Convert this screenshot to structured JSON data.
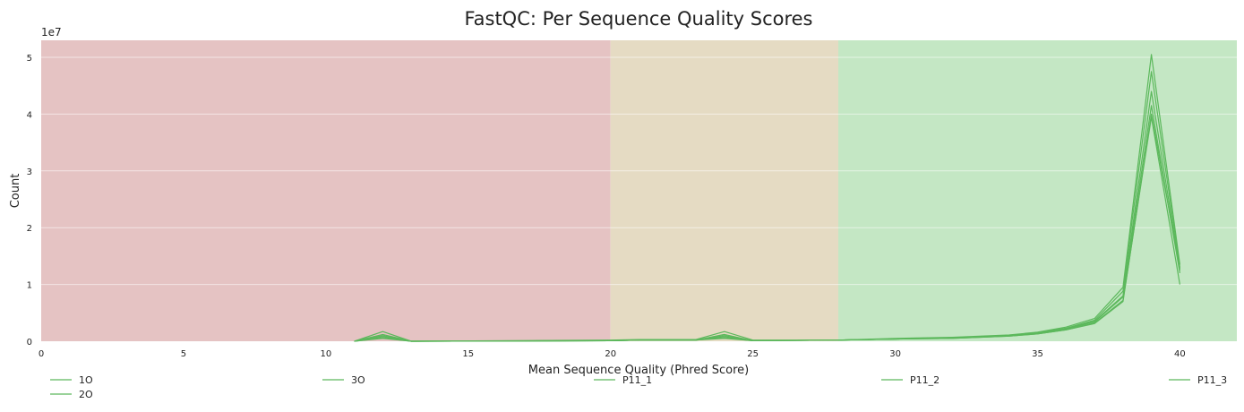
{
  "chart_data": {
    "type": "line",
    "title": "FastQC: Per Sequence Quality Scores",
    "xlabel": "Mean Sequence Quality (Phred Score)",
    "ylabel": "Count",
    "y_multiplier_label": "1e7",
    "xlim": [
      0,
      42
    ],
    "ylim": [
      0,
      5.3
    ],
    "x_ticks": [
      0,
      5,
      10,
      15,
      20,
      25,
      30,
      35,
      40
    ],
    "y_ticks": [
      0,
      1,
      2,
      3,
      4,
      5
    ],
    "grid": true,
    "legend_position": "bottom",
    "zones": [
      {
        "from": 0,
        "to": 20,
        "color": "#e5c3c3"
      },
      {
        "from": 20,
        "to": 28,
        "color": "#e5dbc3"
      },
      {
        "from": 28,
        "to": 42,
        "color": "#c4e7c4"
      }
    ],
    "line_color": "#5cb85c",
    "x": [
      11,
      12,
      13,
      20,
      21,
      23,
      24,
      25,
      28,
      30,
      32,
      34,
      35,
      36,
      37,
      38,
      39,
      40
    ],
    "series": [
      {
        "name": "1O",
        "values": [
          0,
          0.1,
          0,
          0.01,
          0.02,
          0.02,
          0.1,
          0.01,
          0.02,
          0.04,
          0.06,
          0.1,
          0.15,
          0.22,
          0.35,
          0.8,
          4.4,
          1.25
        ]
      },
      {
        "name": "2O",
        "values": [
          0,
          0.17,
          0,
          0.02,
          0.03,
          0.03,
          0.17,
          0.02,
          0.02,
          0.05,
          0.07,
          0.11,
          0.16,
          0.25,
          0.4,
          0.95,
          5.05,
          1.35
        ]
      },
      {
        "name": "3O",
        "values": [
          0,
          0.06,
          0,
          0.01,
          0.02,
          0.02,
          0.06,
          0.01,
          0.02,
          0.04,
          0.05,
          0.09,
          0.13,
          0.2,
          0.32,
          0.72,
          3.95,
          1.0
        ]
      },
      {
        "name": "P11_1",
        "values": [
          0,
          0.08,
          0,
          0.01,
          0.02,
          0.02,
          0.08,
          0.01,
          0.02,
          0.04,
          0.06,
          0.1,
          0.14,
          0.21,
          0.34,
          0.78,
          4.15,
          1.2
        ]
      },
      {
        "name": "P11_2",
        "values": [
          0,
          0.12,
          0,
          0.01,
          0.02,
          0.02,
          0.12,
          0.01,
          0.02,
          0.04,
          0.06,
          0.1,
          0.15,
          0.23,
          0.37,
          0.88,
          4.75,
          1.3
        ]
      },
      {
        "name": "P11_3",
        "values": [
          0,
          0.05,
          0,
          0.01,
          0.02,
          0.02,
          0.05,
          0.01,
          0.02,
          0.04,
          0.05,
          0.09,
          0.13,
          0.2,
          0.31,
          0.7,
          4.0,
          1.28
        ]
      }
    ]
  }
}
